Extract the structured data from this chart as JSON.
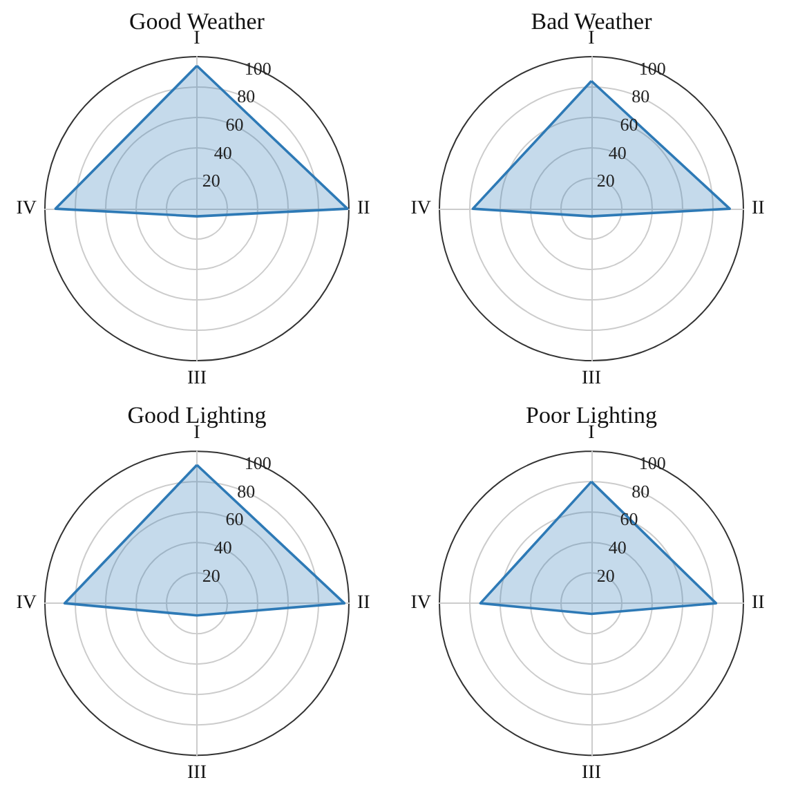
{
  "chart_data": [
    {
      "type": "radar",
      "title": "Good Weather",
      "categories": [
        "I",
        "II",
        "III",
        "IV"
      ],
      "ylim": [
        0,
        100
      ],
      "yticks": [
        20,
        40,
        60,
        80,
        100
      ],
      "grid": true,
      "series": [
        {
          "color": "#2e7ab6",
          "values": [
            94,
            99,
            5,
            93
          ]
        }
      ]
    },
    {
      "type": "radar",
      "title": "Bad Weather",
      "categories": [
        "I",
        "II",
        "III",
        "IV"
      ],
      "ylim": [
        0,
        100
      ],
      "yticks": [
        20,
        40,
        60,
        80,
        100
      ],
      "grid": true,
      "series": [
        {
          "color": "#2e7ab6",
          "values": [
            84,
            91,
            5,
            78
          ]
        }
      ]
    },
    {
      "type": "radar",
      "title": "Good Lighting",
      "categories": [
        "I",
        "II",
        "III",
        "IV"
      ],
      "ylim": [
        0,
        100
      ],
      "yticks": [
        20,
        40,
        60,
        80,
        100
      ],
      "grid": true,
      "series": [
        {
          "color": "#2e7ab6",
          "values": [
            91,
            97,
            8,
            87
          ]
        }
      ]
    },
    {
      "type": "radar",
      "title": "Poor Lighting",
      "categories": [
        "I",
        "II",
        "III",
        "IV"
      ],
      "ylim": [
        0,
        100
      ],
      "yticks": [
        20,
        40,
        60,
        80,
        100
      ],
      "grid": true,
      "series": [
        {
          "color": "#2e7ab6",
          "values": [
            80,
            82,
            7,
            73
          ]
        }
      ]
    }
  ]
}
